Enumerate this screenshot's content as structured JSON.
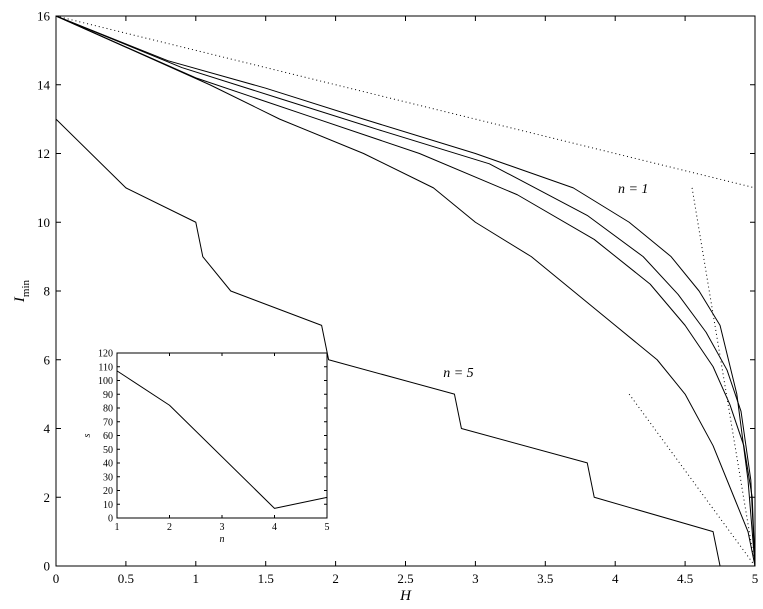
{
  "chart_data": [
    {
      "type": "line",
      "xlabel": "H",
      "ylabel": "I",
      "ylabel_sub": "min",
      "xlim": [
        0,
        5
      ],
      "ylim": [
        0,
        16
      ],
      "xticks": [
        0,
        0.5,
        1,
        1.5,
        2,
        2.5,
        3,
        3.5,
        4,
        4.5,
        5
      ],
      "xtick_labels": [
        "0",
        "0.5",
        "1",
        "1.5",
        "2",
        "2.5",
        "3",
        "3.5",
        "4",
        "4.5",
        "5"
      ],
      "yticks": [
        0,
        2,
        4,
        6,
        8,
        10,
        12,
        14,
        16
      ],
      "ytick_labels": [
        "0",
        "2",
        "4",
        "6",
        "8",
        "10",
        "12",
        "14",
        "16"
      ],
      "grid": false,
      "series": [
        {
          "style": "solid",
          "x": [
            0,
            0.8,
            1.5,
            2.2,
            3.0,
            3.7,
            4.1,
            4.4,
            4.6,
            4.75,
            4.87,
            4.95,
            5.0
          ],
          "y": [
            16,
            14.7,
            13.9,
            13.0,
            12.0,
            11.0,
            10.0,
            9.0,
            8.0,
            7.0,
            5.0,
            2.5,
            0
          ]
        },
        {
          "style": "solid",
          "x": [
            0,
            0.9,
            1.6,
            2.3,
            3.1,
            3.8,
            4.2,
            4.45,
            4.65,
            4.8,
            4.9,
            4.97,
            5.0
          ],
          "y": [
            16,
            14.5,
            13.6,
            12.7,
            11.7,
            10.2,
            9.0,
            7.9,
            6.8,
            5.7,
            4.5,
            2.5,
            0
          ]
        },
        {
          "style": "solid",
          "x": [
            0,
            1.0,
            1.8,
            2.6,
            3.3,
            3.85,
            4.25,
            4.5,
            4.7,
            4.82,
            4.92,
            4.98,
            5.0
          ],
          "y": [
            16,
            14.2,
            13.1,
            12.0,
            10.8,
            9.5,
            8.2,
            7.0,
            5.8,
            4.7,
            3.5,
            2.0,
            0
          ]
        },
        {
          "style": "solid",
          "x": [
            0,
            1.1,
            1.6,
            2.2,
            2.7,
            3.0,
            3.4,
            3.7,
            4.0,
            4.3,
            4.5,
            4.7,
            4.85,
            4.95,
            5.0
          ],
          "y": [
            16,
            14.0,
            13.0,
            12.0,
            11.0,
            10.0,
            9.0,
            8.0,
            7.0,
            6.0,
            5.0,
            3.5,
            2.0,
            1.0,
            0
          ]
        },
        {
          "style": "solid",
          "x": [
            0,
            0.5,
            1.0,
            1.0,
            1.05,
            1.25,
            1.9,
            1.95,
            2.85,
            2.9,
            3.8,
            3.85,
            4.7,
            4.75
          ],
          "y": [
            13,
            11,
            10,
            10,
            9,
            8,
            7,
            6,
            5,
            4,
            3,
            2,
            1,
            0
          ]
        },
        {
          "style": "dotted",
          "x": [
            0,
            5.0
          ],
          "y": [
            16,
            11.0
          ]
        },
        {
          "style": "dotted",
          "x": [
            4.55,
            5.0
          ],
          "y": [
            11.0,
            0
          ]
        },
        {
          "style": "dotted",
          "x": [
            4.1,
            5.0
          ],
          "y": [
            5.0,
            0
          ]
        }
      ],
      "annotations": [
        {
          "text": "n = 1",
          "x": 4.02,
          "y": 10.85
        },
        {
          "text": "n = 5",
          "x": 2.77,
          "y": 5.5
        }
      ]
    },
    {
      "type": "line",
      "inset": true,
      "xlabel": "n",
      "ylabel": "s",
      "xlim": [
        1,
        5
      ],
      "ylim": [
        0,
        120
      ],
      "xticks": [
        1,
        2,
        3,
        4,
        5
      ],
      "xtick_labels": [
        "1",
        "2",
        "3",
        "4",
        "5"
      ],
      "yticks": [
        0,
        10,
        20,
        30,
        40,
        50,
        60,
        70,
        80,
        90,
        100,
        110,
        120
      ],
      "ytick_labels": [
        "0",
        "10",
        "20",
        "30",
        "40",
        "50",
        "60",
        "70",
        "80",
        "90",
        "100",
        "110",
        "120"
      ],
      "grid": false,
      "series": [
        {
          "style": "solid",
          "x": [
            1,
            2,
            4,
            5
          ],
          "y": [
            107,
            82,
            7,
            15
          ]
        }
      ]
    }
  ]
}
